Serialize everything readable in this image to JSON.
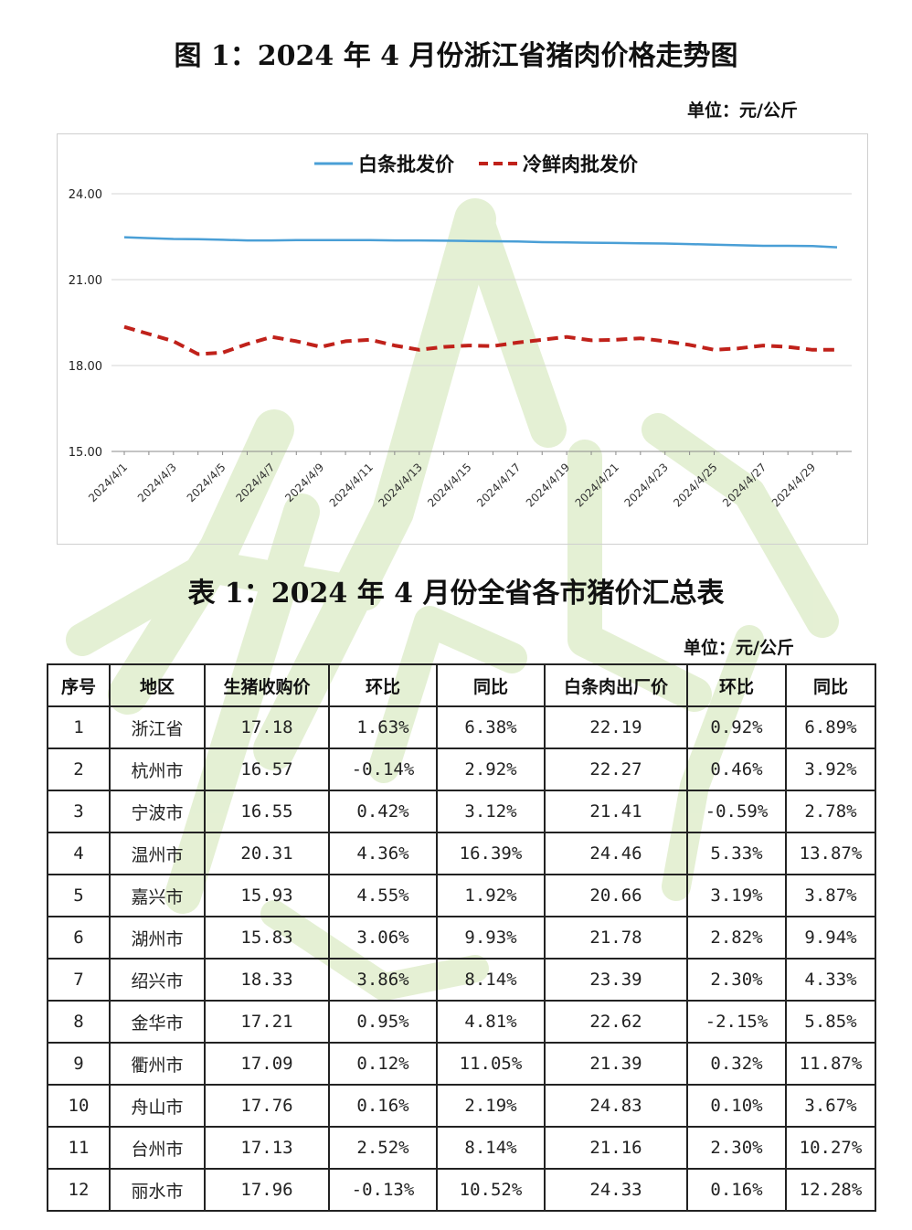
{
  "figure": {
    "title": "图 1：2024 年 4 月份浙江省猪肉价格走势图",
    "unit": "单位：元/公斤"
  },
  "chart_data": {
    "type": "line",
    "legend_position": "top",
    "grid": true,
    "ylim": [
      15,
      24
    ],
    "yticks": [
      "15.00",
      "18.00",
      "21.00",
      "24.00"
    ],
    "x": [
      "2024/4/1",
      "2024/4/2",
      "2024/4/3",
      "2024/4/4",
      "2024/4/5",
      "2024/4/6",
      "2024/4/7",
      "2024/4/8",
      "2024/4/9",
      "2024/4/10",
      "2024/4/11",
      "2024/4/12",
      "2024/4/13",
      "2024/4/14",
      "2024/4/15",
      "2024/4/16",
      "2024/4/17",
      "2024/4/18",
      "2024/4/19",
      "2024/4/20",
      "2024/4/21",
      "2024/4/22",
      "2024/4/23",
      "2024/4/24",
      "2024/4/25",
      "2024/4/26",
      "2024/4/27",
      "2024/4/28",
      "2024/4/29",
      "2024/4/30"
    ],
    "xtick_labels": [
      "2024/4/1",
      "2024/4/3",
      "2024/4/5",
      "2024/4/7",
      "2024/4/9",
      "2024/4/11",
      "2024/4/13",
      "2024/4/15",
      "2024/4/17",
      "2024/4/19",
      "2024/4/21",
      "2024/4/23",
      "2024/4/25",
      "2024/4/27",
      "2024/4/29"
    ],
    "series": [
      {
        "name": "白条批发价",
        "color": "#4a9fd6",
        "style": "solid",
        "values": [
          22.48,
          22.45,
          22.42,
          22.41,
          22.39,
          22.37,
          22.37,
          22.38,
          22.38,
          22.38,
          22.38,
          22.37,
          22.37,
          22.36,
          22.35,
          22.34,
          22.33,
          22.31,
          22.3,
          22.29,
          22.28,
          22.27,
          22.26,
          22.24,
          22.22,
          22.2,
          22.18,
          22.18,
          22.17,
          22.13
        ]
      },
      {
        "name": "冷鲜肉批发价",
        "color": "#c0211a",
        "style": "dashed",
        "values": [
          19.35,
          19.1,
          18.85,
          18.4,
          18.45,
          18.75,
          19.0,
          18.85,
          18.65,
          18.85,
          18.9,
          18.7,
          18.55,
          18.65,
          18.7,
          18.68,
          18.8,
          18.9,
          19.0,
          18.88,
          18.9,
          18.95,
          18.85,
          18.72,
          18.55,
          18.6,
          18.7,
          18.65,
          18.55,
          18.55
        ]
      }
    ]
  },
  "table": {
    "title": "表 1：2024 年 4 月份全省各市猪价汇总表",
    "unit": "单位：元/公斤",
    "headers": [
      "序号",
      "地区",
      "生猪收购价",
      "环比",
      "同比",
      "白条肉出厂价",
      "环比",
      "同比"
    ],
    "rows": [
      [
        "1",
        "浙江省",
        "17.18",
        "1.63%",
        "6.38%",
        "22.19",
        "0.92%",
        "6.89%"
      ],
      [
        "2",
        "杭州市",
        "16.57",
        "-0.14%",
        "2.92%",
        "22.27",
        "0.46%",
        "3.92%"
      ],
      [
        "3",
        "宁波市",
        "16.55",
        "0.42%",
        "3.12%",
        "21.41",
        "-0.59%",
        "2.78%"
      ],
      [
        "4",
        "温州市",
        "20.31",
        "4.36%",
        "16.39%",
        "24.46",
        "5.33%",
        "13.87%"
      ],
      [
        "5",
        "嘉兴市",
        "15.93",
        "4.55%",
        "1.92%",
        "20.66",
        "3.19%",
        "3.87%"
      ],
      [
        "6",
        "湖州市",
        "15.83",
        "3.06%",
        "9.93%",
        "21.78",
        "2.82%",
        "9.94%"
      ],
      [
        "7",
        "绍兴市",
        "18.33",
        "3.86%",
        "8.14%",
        "23.39",
        "2.30%",
        "4.33%"
      ],
      [
        "8",
        "金华市",
        "17.21",
        "0.95%",
        "4.81%",
        "22.62",
        "-2.15%",
        "5.85%"
      ],
      [
        "9",
        "衢州市",
        "17.09",
        "0.12%",
        "11.05%",
        "21.39",
        "0.32%",
        "11.87%"
      ],
      [
        "10",
        "舟山市",
        "17.76",
        "0.16%",
        "2.19%",
        "24.83",
        "0.10%",
        "3.67%"
      ],
      [
        "11",
        "台州市",
        "17.13",
        "2.52%",
        "8.14%",
        "21.16",
        "2.30%",
        "10.27%"
      ],
      [
        "12",
        "丽水市",
        "17.96",
        "-0.13%",
        "10.52%",
        "24.33",
        "0.16%",
        "12.28%"
      ]
    ]
  }
}
